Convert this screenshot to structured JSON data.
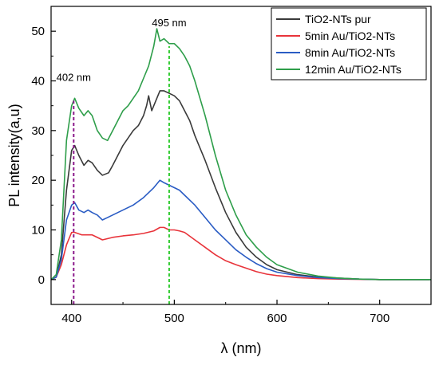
{
  "chart_data": {
    "type": "line",
    "title": "",
    "xlabel": "λ (nm)",
    "ylabel": "PL intensity(a,u)",
    "xlim": [
      380,
      750
    ],
    "ylim": [
      -5,
      55
    ],
    "x_ticks": [
      400,
      500,
      600,
      700
    ],
    "y_ticks": [
      0,
      10,
      20,
      30,
      40,
      50
    ],
    "legend_position": "top-right",
    "grid": false,
    "series": [
      {
        "name": "TiO2-NTs pur",
        "color": "#3a3a3a",
        "points": [
          [
            380,
            0
          ],
          [
            385,
            0.5
          ],
          [
            390,
            5
          ],
          [
            395,
            18
          ],
          [
            400,
            26
          ],
          [
            403,
            27
          ],
          [
            407,
            25
          ],
          [
            412,
            23
          ],
          [
            416,
            24
          ],
          [
            420,
            23.5
          ],
          [
            425,
            22
          ],
          [
            430,
            21
          ],
          [
            436,
            21.5
          ],
          [
            440,
            23
          ],
          [
            445,
            25
          ],
          [
            450,
            27
          ],
          [
            455,
            28.5
          ],
          [
            460,
            30
          ],
          [
            465,
            31
          ],
          [
            470,
            33
          ],
          [
            473,
            35
          ],
          [
            475,
            37
          ],
          [
            478,
            34
          ],
          [
            482,
            36
          ],
          [
            486,
            38
          ],
          [
            490,
            38
          ],
          [
            495,
            37.5
          ],
          [
            500,
            37
          ],
          [
            505,
            36
          ],
          [
            510,
            34
          ],
          [
            515,
            32
          ],
          [
            520,
            29
          ],
          [
            530,
            24
          ],
          [
            540,
            18.5
          ],
          [
            550,
            13.5
          ],
          [
            560,
            9.5
          ],
          [
            570,
            6.5
          ],
          [
            580,
            4.5
          ],
          [
            590,
            3
          ],
          [
            600,
            2
          ],
          [
            620,
            1
          ],
          [
            640,
            0.5
          ],
          [
            660,
            0.3
          ],
          [
            680,
            0.1
          ],
          [
            700,
            0
          ],
          [
            720,
            0
          ],
          [
            750,
            0
          ]
        ]
      },
      {
        "name": "5min Au/TiO2-NTs",
        "color": "#e8333a",
        "points": [
          [
            380,
            0
          ],
          [
            385,
            0.5
          ],
          [
            390,
            3
          ],
          [
            395,
            7
          ],
          [
            400,
            9.5
          ],
          [
            403,
            9.5
          ],
          [
            410,
            9
          ],
          [
            420,
            9
          ],
          [
            430,
            8
          ],
          [
            440,
            8.5
          ],
          [
            450,
            8.8
          ],
          [
            460,
            9
          ],
          [
            470,
            9.3
          ],
          [
            480,
            9.8
          ],
          [
            486,
            10.5
          ],
          [
            490,
            10.5
          ],
          [
            495,
            10
          ],
          [
            500,
            10
          ],
          [
            505,
            9.8
          ],
          [
            510,
            9.5
          ],
          [
            520,
            8
          ],
          [
            530,
            6.5
          ],
          [
            540,
            5
          ],
          [
            550,
            3.8
          ],
          [
            560,
            3
          ],
          [
            570,
            2.3
          ],
          [
            580,
            1.6
          ],
          [
            590,
            1.1
          ],
          [
            600,
            0.8
          ],
          [
            620,
            0.4
          ],
          [
            640,
            0.2
          ],
          [
            660,
            0.1
          ],
          [
            700,
            0
          ],
          [
            750,
            0
          ]
        ]
      },
      {
        "name": "8min Au/TiO2-NTs",
        "color": "#2a5cc4",
        "points": [
          [
            380,
            0
          ],
          [
            385,
            0.5
          ],
          [
            390,
            4
          ],
          [
            395,
            12
          ],
          [
            400,
            15
          ],
          [
            403,
            15.5
          ],
          [
            407,
            14
          ],
          [
            412,
            13.5
          ],
          [
            416,
            14
          ],
          [
            420,
            13.5
          ],
          [
            425,
            13
          ],
          [
            430,
            12
          ],
          [
            435,
            12.5
          ],
          [
            440,
            13
          ],
          [
            450,
            14
          ],
          [
            460,
            15
          ],
          [
            470,
            16.5
          ],
          [
            480,
            18.5
          ],
          [
            486,
            20
          ],
          [
            490,
            19.5
          ],
          [
            495,
            19
          ],
          [
            500,
            18.5
          ],
          [
            505,
            18
          ],
          [
            510,
            17
          ],
          [
            520,
            15
          ],
          [
            530,
            12.5
          ],
          [
            540,
            10
          ],
          [
            550,
            8
          ],
          [
            560,
            6
          ],
          [
            570,
            4.5
          ],
          [
            580,
            3.2
          ],
          [
            590,
            2.2
          ],
          [
            600,
            1.5
          ],
          [
            620,
            0.8
          ],
          [
            640,
            0.4
          ],
          [
            660,
            0.2
          ],
          [
            700,
            0
          ],
          [
            750,
            0
          ]
        ]
      },
      {
        "name": "12min Au/TiO2-NTs",
        "color": "#2e9e4a",
        "points": [
          [
            380,
            0
          ],
          [
            385,
            1
          ],
          [
            390,
            8
          ],
          [
            395,
            28
          ],
          [
            400,
            35
          ],
          [
            403,
            36.5
          ],
          [
            407,
            34.5
          ],
          [
            412,
            33
          ],
          [
            416,
            34
          ],
          [
            420,
            33
          ],
          [
            425,
            30
          ],
          [
            430,
            28.5
          ],
          [
            435,
            28
          ],
          [
            440,
            30
          ],
          [
            445,
            32
          ],
          [
            450,
            34
          ],
          [
            455,
            35
          ],
          [
            460,
            36.5
          ],
          [
            465,
            38
          ],
          [
            470,
            40.5
          ],
          [
            475,
            43
          ],
          [
            480,
            47
          ],
          [
            483,
            50.5
          ],
          [
            486,
            48
          ],
          [
            490,
            48.5
          ],
          [
            495,
            47.5
          ],
          [
            500,
            47.5
          ],
          [
            505,
            46.5
          ],
          [
            510,
            45
          ],
          [
            515,
            43
          ],
          [
            520,
            40
          ],
          [
            530,
            33
          ],
          [
            540,
            25
          ],
          [
            550,
            18
          ],
          [
            560,
            13
          ],
          [
            570,
            9
          ],
          [
            580,
            6.5
          ],
          [
            590,
            4.5
          ],
          [
            600,
            3
          ],
          [
            620,
            1.5
          ],
          [
            640,
            0.7
          ],
          [
            660,
            0.3
          ],
          [
            680,
            0.1
          ],
          [
            700,
            0
          ],
          [
            750,
            0
          ]
        ]
      }
    ],
    "annotations": [
      {
        "text": "402 nm",
        "x": 402,
        "y": 40,
        "color": "#8b1a8b"
      },
      {
        "text": "495 nm",
        "x": 495,
        "y": 51,
        "color": "#33cc33"
      }
    ]
  }
}
